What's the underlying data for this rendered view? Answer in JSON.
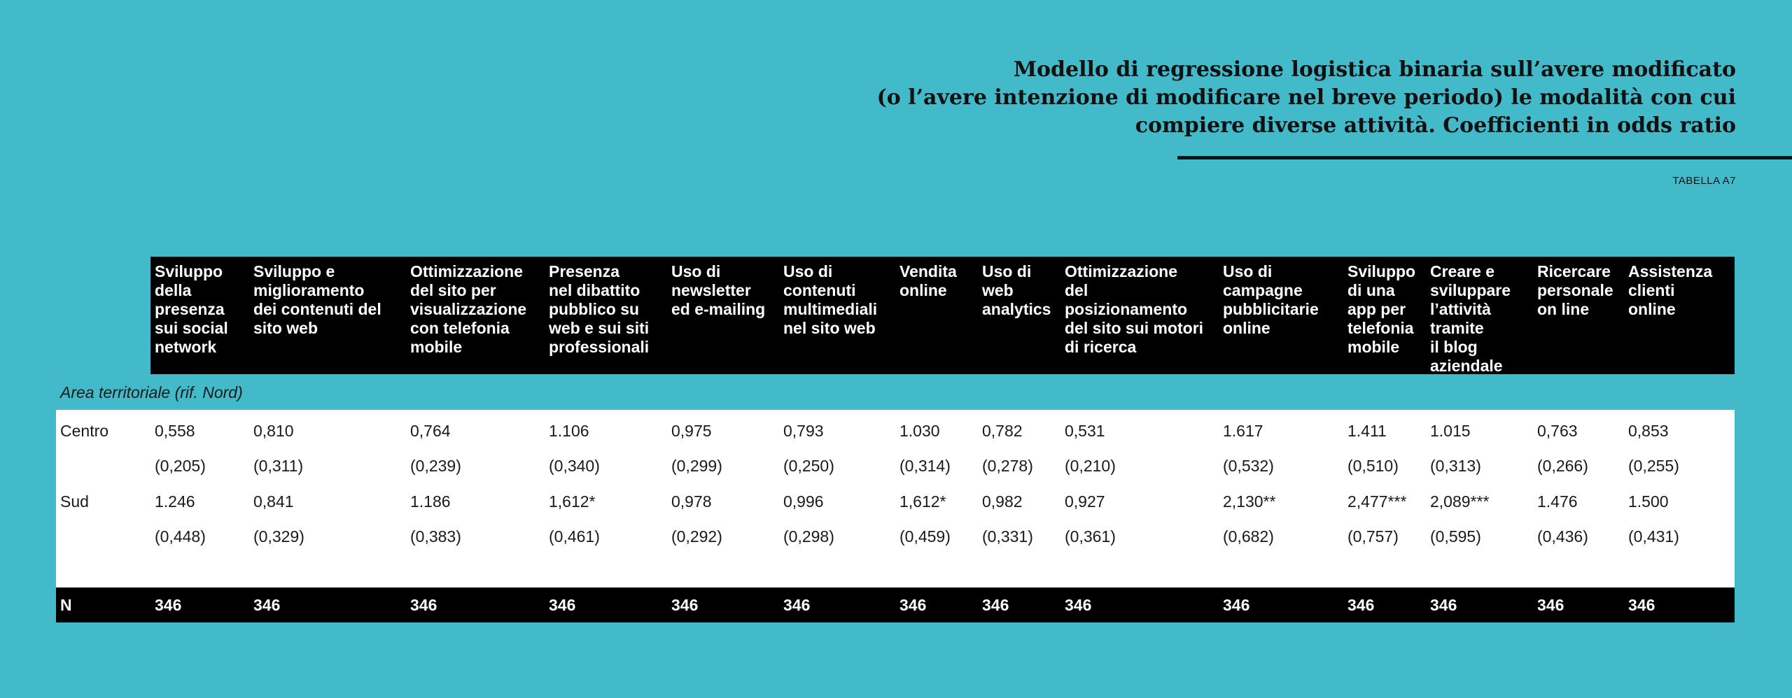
{
  "title": {
    "line1": "Modello di regressione logistica binaria sull’avere modificato",
    "line2": "(o l’avere intenzione di modificare nel breve periodo) le modalità con cui",
    "line3": "compiere diverse attività. Coefficienti in odds ratio"
  },
  "table_id": "TABELLA A7",
  "columns": [
    "Sviluppo della presenza sui social network",
    "Sviluppo e miglioramento dei contenuti del sito web",
    "Ottimizzazione del sito per visualizzazione con telefonia mobile",
    "Presenza nel dibattito pubblico su web e sui siti professionali",
    "Uso di newsletter ed e-mailing",
    "Uso di contenuti multimediali nel sito web",
    "Vendita online",
    "Uso di web analytics",
    "Ottimizzazione del posizionamento del sito sui motori di ricerca",
    "Uso di campagne pubblicitarie online",
    "Sviluppo di una app per telefonia mobile",
    "Creare e sviluppare l’attività tramite il blog aziendale",
    "Ricercare personale on line",
    "Assistenza clienti online"
  ],
  "columns_display": [
    [
      "Sviluppo",
      "della",
      "presenza",
      "sui social",
      "network"
    ],
    [
      "Sviluppo e",
      "miglioramento",
      "dei contenuti del",
      "sito web"
    ],
    [
      "Ottimizzazione",
      "del sito per",
      "visualizzazione",
      "con telefonia",
      "mobile"
    ],
    [
      "Presenza",
      "nel dibattito",
      "pubblico su",
      "web e sui siti",
      "professionali"
    ],
    [
      "Uso di",
      "newsletter",
      "ed e-mailing"
    ],
    [
      "Uso di",
      "contenuti",
      "multimediali",
      "nel sito web"
    ],
    [
      "Vendita",
      "online"
    ],
    [
      "Uso di",
      "web",
      "analytics"
    ],
    [
      "Ottimizzazione",
      "del",
      "posizionamento",
      "del sito sui motori",
      "di ricerca"
    ],
    [
      "Uso di",
      "campagne",
      "pubblicitarie",
      "online"
    ],
    [
      "Sviluppo",
      "di una",
      "app per",
      "telefonia",
      "mobile"
    ],
    [
      "Creare e",
      "sviluppare",
      "l’attività",
      "tramite",
      "il blog",
      "aziendale"
    ],
    [
      "Ricercare",
      "personale",
      "on line"
    ],
    [
      "Assistenza",
      "clienti",
      "online"
    ]
  ],
  "section_label": "Area territoriale (rif. Nord)",
  "rows": [
    {
      "label": "Centro",
      "coef": [
        "0,558",
        "0,810",
        "0,764",
        "1.106",
        "0,975",
        "0,793",
        "1.030",
        "0,782",
        "0,531",
        "1.617",
        "1.411",
        "1.015",
        "0,763",
        "0,853"
      ],
      "se": [
        "(0,205)",
        "(0,311)",
        "(0,239)",
        "(0,340)",
        "(0,299)",
        "(0,250)",
        "(0,314)",
        "(0,278)",
        "(0,210)",
        "(0,532)",
        "(0,510)",
        "(0,313)",
        "(0,266)",
        "(0,255)"
      ]
    },
    {
      "label": "Sud",
      "coef": [
        "1.246",
        "0,841",
        "1.186",
        "1,612*",
        "0,978",
        "0,996",
        "1,612*",
        "0,982",
        "0,927",
        "2,130**",
        "2,477***",
        "2,089***",
        "1.476",
        "1.500"
      ],
      "se": [
        "(0,448)",
        "(0,329)",
        "(0,383)",
        "(0,461)",
        "(0,292)",
        "(0,298)",
        "(0,459)",
        "(0,331)",
        "(0,361)",
        "(0,682)",
        "(0,757)",
        "(0,595)",
        "(0,436)",
        "(0,431)"
      ]
    }
  ],
  "n_row": {
    "label": "N",
    "values": [
      "346",
      "346",
      "346",
      "346",
      "346",
      "346",
      "346",
      "346",
      "346",
      "346",
      "346",
      "346",
      "346",
      "346"
    ]
  }
}
